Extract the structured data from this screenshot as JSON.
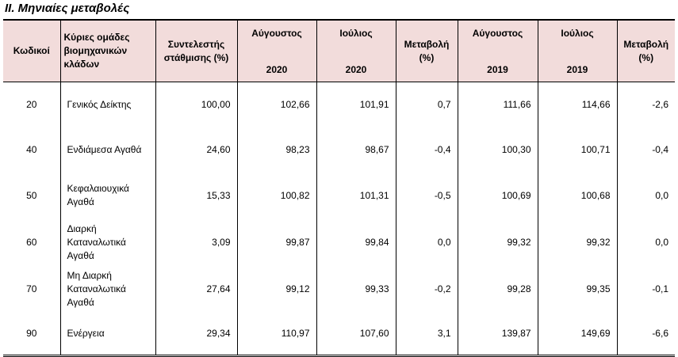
{
  "title": "II. Μηνιαίες μεταβολές",
  "header": {
    "code": "Κωδικοί",
    "groups": "Κύριες ομάδες βιομηχανικών κλάδων",
    "weight": "Συντελεστής στάθμισης (%)",
    "aug2020_month": "Αύγουστος",
    "aug2020_year": "2020",
    "jul2020_month": "Ιούλιος",
    "jul2020_year": "2020",
    "change1": "Μεταβολή (%)",
    "aug2019_month": "Αύγουστος",
    "aug2019_year": "2019",
    "jul2019_month": "Ιούλιος",
    "jul2019_year": "2019",
    "change2": "Μεταβολή (%)"
  },
  "rows": [
    {
      "code": "20",
      "name": "Γενικός Δείκτης",
      "weight": "100,00",
      "aug2020": "102,66",
      "jul2020": "101,91",
      "chg1": "0,7",
      "aug2019": "111,66",
      "jul2019": "114,66",
      "chg2": "-2,6"
    },
    {
      "code": "40",
      "name": "Ενδιάμεσα Αγαθά",
      "weight": "24,60",
      "aug2020": "98,23",
      "jul2020": "98,67",
      "chg1": "-0,4",
      "aug2019": "100,30",
      "jul2019": "100,71",
      "chg2": "-0,4"
    },
    {
      "code": "50",
      "name": "Κεφαλαιουχικά Αγαθά",
      "weight": "15,33",
      "aug2020": "100,82",
      "jul2020": "101,31",
      "chg1": "-0,5",
      "aug2019": "100,69",
      "jul2019": "100,68",
      "chg2": "0,0"
    },
    {
      "code": "60",
      "name": "Διαρκή Καταναλωτικά Αγαθά",
      "weight": "3,09",
      "aug2020": "99,87",
      "jul2020": "99,84",
      "chg1": "0,0",
      "aug2019": "99,32",
      "jul2019": "99,32",
      "chg2": "0,0"
    },
    {
      "code": "70",
      "name": "Μη Διαρκή Καταναλωτικά Αγαθά",
      "weight": "27,64",
      "aug2020": "99,12",
      "jul2020": "99,33",
      "chg1": "-0,2",
      "aug2019": "99,28",
      "jul2019": "99,35",
      "chg2": "-0,1"
    },
    {
      "code": "90",
      "name": "Ενέργεια",
      "weight": "29,34",
      "aug2020": "110,97",
      "jul2020": "107,60",
      "chg1": "3,1",
      "aug2019": "139,87",
      "jul2019": "149,69",
      "chg2": "-6,6"
    }
  ]
}
